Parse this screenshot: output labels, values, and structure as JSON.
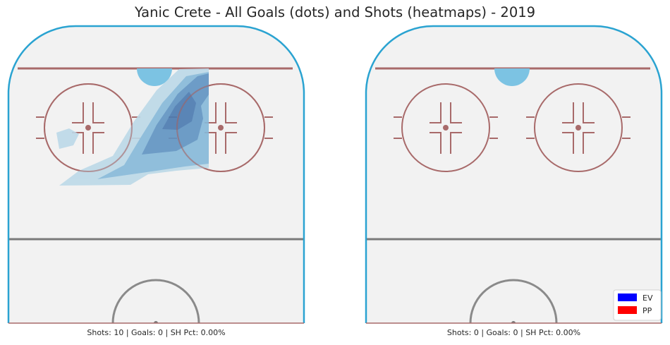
{
  "title": "Yanic Crete - All Goals (dots) and Shots (heatmaps) - 2019",
  "colors": {
    "ice": "#f2f2f2",
    "boards": "#2aa3d1",
    "red_line": "#a86a6a",
    "crease": "#7cc3e3",
    "blue_line": "#7a7a7a",
    "heat_levels": [
      "#bcd9e8",
      "#86b9d9",
      "#5f93c2",
      "#4a7ab0"
    ],
    "ev": "#0000ff",
    "pp": "#ff0000"
  },
  "legend": {
    "entries": [
      {
        "label": "EV",
        "color": "#0000ff"
      },
      {
        "label": "PP",
        "color": "#ff0000"
      }
    ],
    "placement": "lower-right"
  },
  "chart_data": [
    {
      "type": "heatmap",
      "name": "panel-left",
      "caption": "Shots: 10 | Goals: 0 | SH Pct: 0.00%",
      "stats": {
        "shots": 10,
        "goals": 0,
        "sh_pct": "0.00%"
      },
      "goals": [],
      "shot_density_levels": 4
    },
    {
      "type": "heatmap",
      "name": "panel-right",
      "caption": "Shots: 0 | Goals: 0 | SH Pct: 0.00%",
      "stats": {
        "shots": 0,
        "goals": 0,
        "sh_pct": "0.00%"
      },
      "goals": [],
      "shot_density_levels": 0
    }
  ]
}
